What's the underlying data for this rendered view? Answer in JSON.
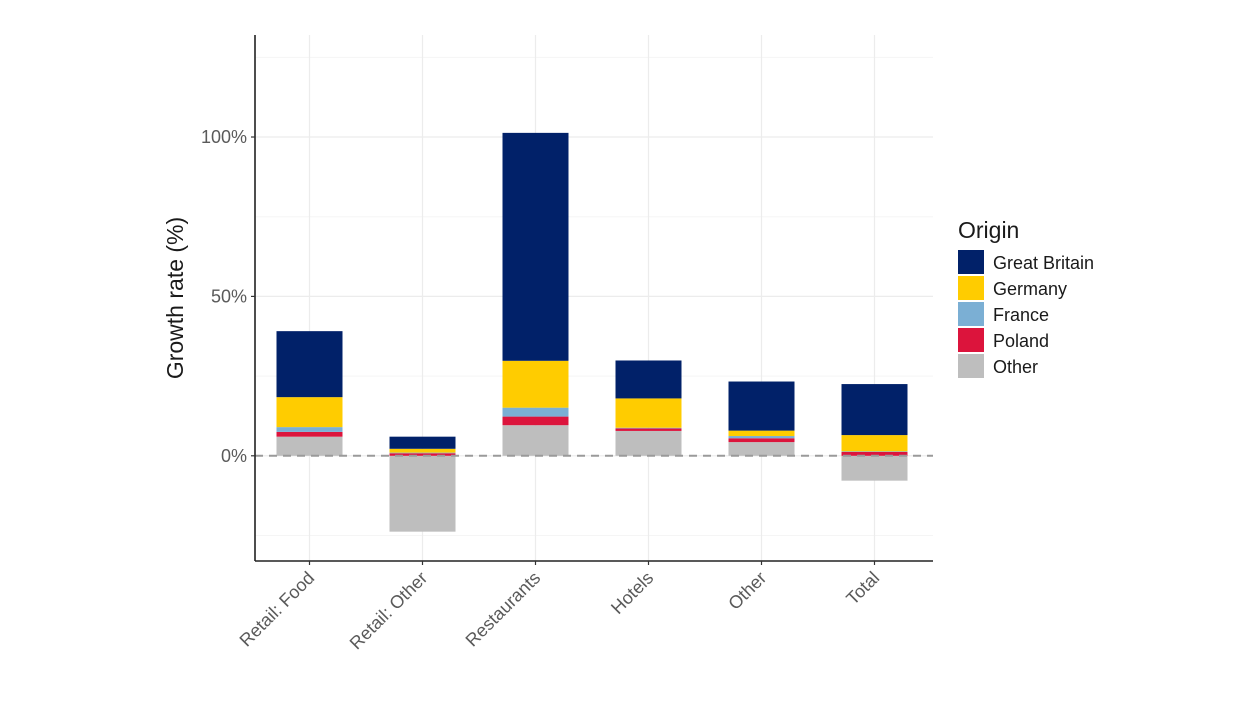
{
  "chart_data": {
    "type": "bar",
    "stacked": true,
    "title": "",
    "xlabel": "",
    "ylabel": "Growth rate (%)",
    "ylim": [
      -33,
      132
    ],
    "yticks": [
      0,
      50,
      100
    ],
    "ytick_labels": [
      "0%",
      "50%",
      "100%"
    ],
    "grid": true,
    "reference_line": {
      "y": 0,
      "style": "dashed"
    },
    "categories": [
      "Retail: Food",
      "Retail: Other",
      "Restaurants",
      "Hotels",
      "Other",
      "Total"
    ],
    "legend": {
      "title": "Origin",
      "placement": "right"
    },
    "series": [
      {
        "name": "Other",
        "color": "#BEBEBE",
        "values": [
          6.0,
          -23.8,
          9.6,
          7.8,
          4.3,
          -7.8
        ]
      },
      {
        "name": "Poland",
        "color": "#DC143C",
        "values": [
          1.5,
          0.8,
          2.7,
          0.8,
          1.2,
          1.2
        ]
      },
      {
        "name": "France",
        "color": "#7BAFD4",
        "values": [
          1.5,
          0.2,
          2.8,
          0.2,
          0.7,
          0.2
        ]
      },
      {
        "name": "Germany",
        "color": "#FFCC00",
        "values": [
          9.4,
          1.2,
          14.7,
          9.2,
          1.7,
          5.1
        ]
      },
      {
        "name": "Great Britain",
        "color": "#012169",
        "values": [
          20.7,
          3.8,
          71.5,
          11.9,
          15.4,
          16.0
        ]
      }
    ],
    "legend_order": [
      "Great Britain",
      "Germany",
      "France",
      "Poland",
      "Other"
    ]
  }
}
